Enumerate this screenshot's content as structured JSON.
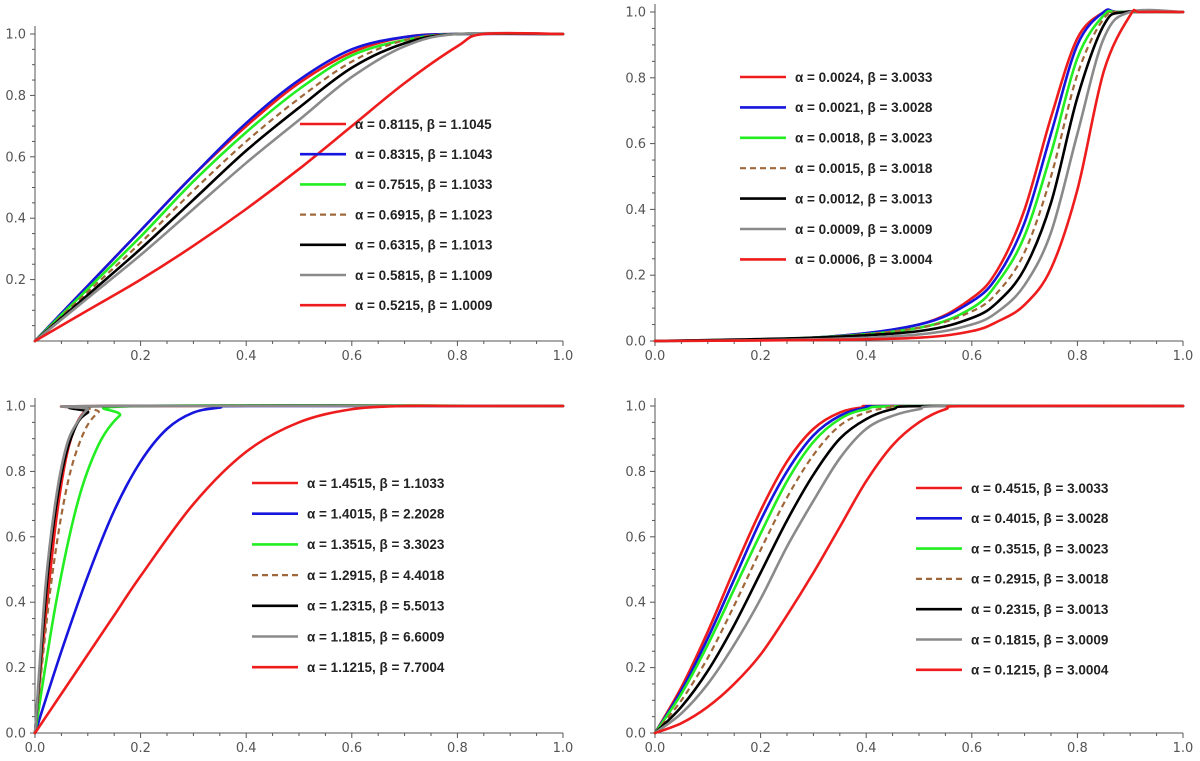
{
  "colors": {
    "red": "#ee1c1c",
    "blue": "#1515dd",
    "green": "#22ee22",
    "brown": "#a0683a",
    "black": "#000000",
    "gray": "#8a8a8a"
  },
  "chart_data": [
    {
      "type": "line",
      "title": "",
      "xlabel": "",
      "ylabel": "",
      "xlim": [
        0,
        1
      ],
      "ylim": [
        0,
        1
      ],
      "x_ticks": [
        "0.2",
        "0.4",
        "0.6",
        "0.8",
        "1.0"
      ],
      "y_ticks": [
        "0.2",
        "0.4",
        "0.6",
        "0.8",
        "1.0"
      ],
      "legend_position": "center-right",
      "series": [
        {
          "name": "α = 0.8115, β = 1.1045",
          "color": "red",
          "dashed": false,
          "x": [
            0,
            0.1,
            0.2,
            0.3,
            0.4,
            0.5,
            0.6,
            0.7,
            0.8,
            1.0
          ],
          "y": [
            0,
            0.18,
            0.36,
            0.54,
            0.7,
            0.84,
            0.94,
            0.99,
            1.0,
            1.0
          ]
        },
        {
          "name": "α = 0.8315, β = 1.1043",
          "color": "blue",
          "dashed": false,
          "x": [
            0,
            0.1,
            0.2,
            0.3,
            0.4,
            0.5,
            0.6,
            0.7,
            0.8,
            1.0
          ],
          "y": [
            0,
            0.18,
            0.36,
            0.54,
            0.71,
            0.85,
            0.95,
            0.99,
            1.0,
            1.0
          ]
        },
        {
          "name": "α = 0.7515, β = 1.1033",
          "color": "green",
          "dashed": false,
          "x": [
            0,
            0.1,
            0.2,
            0.3,
            0.4,
            0.5,
            0.6,
            0.7,
            0.8,
            1.0
          ],
          "y": [
            0,
            0.17,
            0.34,
            0.52,
            0.68,
            0.82,
            0.93,
            0.98,
            1.0,
            1.0
          ]
        },
        {
          "name": "α = 0.6915, β = 1.1023",
          "color": "brown",
          "dashed": true,
          "x": [
            0,
            0.1,
            0.2,
            0.3,
            0.4,
            0.5,
            0.6,
            0.7,
            0.8,
            1.0
          ],
          "y": [
            0,
            0.16,
            0.32,
            0.49,
            0.65,
            0.79,
            0.91,
            0.98,
            1.0,
            1.0
          ]
        },
        {
          "name": "α = 0.6315, β = 1.1013",
          "color": "black",
          "dashed": false,
          "x": [
            0,
            0.1,
            0.2,
            0.3,
            0.4,
            0.5,
            0.6,
            0.7,
            0.8,
            1.0
          ],
          "y": [
            0,
            0.15,
            0.3,
            0.46,
            0.62,
            0.76,
            0.89,
            0.97,
            1.0,
            1.0
          ]
        },
        {
          "name": "α = 0.5815, β = 1.1009",
          "color": "gray",
          "dashed": false,
          "x": [
            0,
            0.1,
            0.2,
            0.3,
            0.4,
            0.5,
            0.6,
            0.7,
            0.8,
            1.0
          ],
          "y": [
            0,
            0.14,
            0.28,
            0.43,
            0.58,
            0.72,
            0.86,
            0.96,
            1.0,
            1.0
          ]
        },
        {
          "name": "α = 0.5215, β = 1.0009",
          "color": "red",
          "dashed": false,
          "x": [
            0,
            0.1,
            0.2,
            0.3,
            0.4,
            0.5,
            0.6,
            0.7,
            0.8,
            0.85,
            1.0
          ],
          "y": [
            0,
            0.1,
            0.2,
            0.31,
            0.43,
            0.56,
            0.7,
            0.84,
            0.96,
            1.0,
            1.0
          ]
        }
      ]
    },
    {
      "type": "line",
      "title": "",
      "xlabel": "",
      "ylabel": "",
      "xlim": [
        0,
        1
      ],
      "ylim": [
        0,
        1
      ],
      "x_ticks": [
        "0.0",
        "0.2",
        "0.4",
        "0.6",
        "0.8",
        "1.0"
      ],
      "y_ticks": [
        "0.0",
        "0.2",
        "0.4",
        "0.6",
        "0.8",
        "1.0"
      ],
      "legend_position": "top-left",
      "series": [
        {
          "name": "α = 0.0024, β = 3.0033",
          "color": "red",
          "dashed": false,
          "x": [
            0,
            0.3,
            0.5,
            0.6,
            0.65,
            0.7,
            0.75,
            0.8,
            0.85,
            0.87,
            1.0
          ],
          "y": [
            0,
            0.01,
            0.05,
            0.13,
            0.22,
            0.4,
            0.68,
            0.92,
            1.0,
            1.0,
            1.0
          ]
        },
        {
          "name": "α = 0.0021, β = 3.0028",
          "color": "blue",
          "dashed": false,
          "x": [
            0,
            0.3,
            0.5,
            0.6,
            0.65,
            0.7,
            0.75,
            0.8,
            0.85,
            0.88,
            1.0
          ],
          "y": [
            0,
            0.01,
            0.05,
            0.12,
            0.2,
            0.36,
            0.63,
            0.9,
            1.0,
            1.0,
            1.0
          ]
        },
        {
          "name": "α = 0.0018, β = 3.0023",
          "color": "green",
          "dashed": false,
          "x": [
            0,
            0.3,
            0.5,
            0.6,
            0.65,
            0.7,
            0.75,
            0.8,
            0.85,
            0.88,
            1.0
          ],
          "y": [
            0,
            0.01,
            0.04,
            0.1,
            0.18,
            0.32,
            0.57,
            0.86,
            0.99,
            1.0,
            1.0
          ]
        },
        {
          "name": "α = 0.0015, β = 3.0018",
          "color": "brown",
          "dashed": true,
          "x": [
            0,
            0.3,
            0.5,
            0.6,
            0.65,
            0.7,
            0.75,
            0.8,
            0.85,
            0.89,
            1.0
          ],
          "y": [
            0,
            0.01,
            0.04,
            0.09,
            0.15,
            0.27,
            0.5,
            0.81,
            0.98,
            1.0,
            1.0
          ]
        },
        {
          "name": "α = 0.0012, β = 3.0013",
          "color": "black",
          "dashed": false,
          "x": [
            0,
            0.3,
            0.5,
            0.6,
            0.65,
            0.7,
            0.75,
            0.8,
            0.85,
            0.89,
            1.0
          ],
          "y": [
            0,
            0.01,
            0.03,
            0.07,
            0.12,
            0.22,
            0.42,
            0.74,
            0.96,
            1.0,
            1.0
          ]
        },
        {
          "name": "α = 0.0009, β = 3.0009",
          "color": "gray",
          "dashed": false,
          "x": [
            0,
            0.3,
            0.5,
            0.6,
            0.65,
            0.7,
            0.75,
            0.8,
            0.85,
            0.9,
            1.0
          ],
          "y": [
            0,
            0.005,
            0.02,
            0.05,
            0.09,
            0.17,
            0.33,
            0.63,
            0.92,
            1.0,
            1.0
          ]
        },
        {
          "name": "α = 0.0006, β = 3.0004",
          "color": "red",
          "dashed": false,
          "x": [
            0,
            0.3,
            0.5,
            0.6,
            0.65,
            0.7,
            0.75,
            0.8,
            0.85,
            0.9,
            0.92,
            1.0
          ],
          "y": [
            0,
            0.003,
            0.01,
            0.03,
            0.06,
            0.11,
            0.22,
            0.46,
            0.82,
            0.99,
            1.0,
            1.0
          ]
        }
      ]
    },
    {
      "type": "line",
      "title": "",
      "xlabel": "",
      "ylabel": "",
      "xlim": [
        0,
        1
      ],
      "ylim": [
        0,
        1
      ],
      "x_ticks": [
        "0.0",
        "0.2",
        "0.4",
        "0.6",
        "0.8",
        "1.0"
      ],
      "y_ticks": [
        "0.0",
        "0.2",
        "0.4",
        "0.6",
        "0.8",
        "1.0"
      ],
      "legend_position": "center-right",
      "series": [
        {
          "name": "α = 1.4515, β = 1.1033",
          "color": "red",
          "dashed": false,
          "x": [
            0,
            0.02,
            0.04,
            0.06,
            0.08,
            0.1,
            0.12,
            1.0
          ],
          "y": [
            0,
            0.35,
            0.65,
            0.85,
            0.95,
            0.99,
            1.0,
            1.0
          ]
        },
        {
          "name": "α = 1.4015, β = 2.2028",
          "color": "blue",
          "dashed": false,
          "x": [
            0,
            0.05,
            0.1,
            0.15,
            0.2,
            0.25,
            0.3,
            0.35,
            0.4,
            1.0
          ],
          "y": [
            0,
            0.25,
            0.48,
            0.68,
            0.83,
            0.93,
            0.98,
            0.995,
            1.0,
            1.0
          ]
        },
        {
          "name": "α = 1.3515, β = 3.3023",
          "color": "green",
          "dashed": false,
          "x": [
            0,
            0.04,
            0.08,
            0.12,
            0.16,
            0.2,
            1.0
          ],
          "y": [
            0,
            0.4,
            0.7,
            0.88,
            0.97,
            1.0,
            1.0
          ]
        },
        {
          "name": "α = 1.2915, β = 4.4018",
          "color": "brown",
          "dashed": true,
          "x": [
            0,
            0.03,
            0.06,
            0.09,
            0.12,
            0.16,
            1.0
          ],
          "y": [
            0,
            0.45,
            0.75,
            0.91,
            0.98,
            1.0,
            1.0
          ]
        },
        {
          "name": "α = 1.2315, β = 5.5013",
          "color": "black",
          "dashed": false,
          "x": [
            0,
            0.025,
            0.05,
            0.075,
            0.1,
            0.14,
            1.0
          ],
          "y": [
            0,
            0.5,
            0.79,
            0.93,
            0.98,
            1.0,
            1.0
          ]
        },
        {
          "name": "α = 1.1815, β = 6.6009",
          "color": "gray",
          "dashed": false,
          "x": [
            0,
            0.02,
            0.04,
            0.06,
            0.08,
            0.1,
            0.12,
            1.0
          ],
          "y": [
            0,
            0.45,
            0.72,
            0.88,
            0.95,
            0.99,
            1.0,
            1.0
          ]
        },
        {
          "name": "α = 1.1215, β = 7.7004",
          "color": "red",
          "dashed": false,
          "x": [
            0,
            0.05,
            0.1,
            0.15,
            0.2,
            0.3,
            0.4,
            0.5,
            0.6,
            0.7,
            0.8,
            1.0
          ],
          "y": [
            0,
            0.12,
            0.24,
            0.36,
            0.48,
            0.7,
            0.86,
            0.95,
            0.99,
            1.0,
            1.0,
            1.0
          ]
        }
      ]
    },
    {
      "type": "line",
      "title": "",
      "xlabel": "",
      "ylabel": "",
      "xlim": [
        0,
        1
      ],
      "ylim": [
        0,
        1
      ],
      "x_ticks": [
        "0.0",
        "0.2",
        "0.4",
        "0.6",
        "0.8",
        "1.0"
      ],
      "y_ticks": [
        "0.0",
        "0.2",
        "0.4",
        "0.6",
        "0.8",
        "1.0"
      ],
      "legend_position": "center-right",
      "series": [
        {
          "name": "α = 0.4515, β = 3.0033",
          "color": "red",
          "dashed": false,
          "x": [
            0,
            0.05,
            0.1,
            0.15,
            0.2,
            0.25,
            0.3,
            0.35,
            0.4,
            0.45,
            1.0
          ],
          "y": [
            0,
            0.14,
            0.31,
            0.5,
            0.68,
            0.83,
            0.93,
            0.98,
            0.997,
            1.0,
            1.0
          ]
        },
        {
          "name": "α = 0.4015, β = 3.0028",
          "color": "blue",
          "dashed": false,
          "x": [
            0,
            0.05,
            0.1,
            0.15,
            0.2,
            0.25,
            0.3,
            0.35,
            0.4,
            0.46,
            1.0
          ],
          "y": [
            0,
            0.13,
            0.29,
            0.47,
            0.65,
            0.8,
            0.91,
            0.97,
            0.995,
            1.0,
            1.0
          ]
        },
        {
          "name": "α = 0.3515, β = 3.0023",
          "color": "green",
          "dashed": false,
          "x": [
            0,
            0.05,
            0.1,
            0.15,
            0.2,
            0.25,
            0.3,
            0.35,
            0.4,
            0.48,
            1.0
          ],
          "y": [
            0,
            0.12,
            0.27,
            0.44,
            0.61,
            0.77,
            0.89,
            0.96,
            0.99,
            1.0,
            1.0
          ]
        },
        {
          "name": "α = 0.2915, β = 3.0018",
          "color": "brown",
          "dashed": true,
          "x": [
            0,
            0.05,
            0.1,
            0.15,
            0.2,
            0.25,
            0.3,
            0.35,
            0.4,
            0.45,
            0.5,
            1.0
          ],
          "y": [
            0,
            0.1,
            0.23,
            0.39,
            0.56,
            0.72,
            0.85,
            0.94,
            0.98,
            0.997,
            1.0,
            1.0
          ]
        },
        {
          "name": "α = 0.2315, β = 3.0013",
          "color": "black",
          "dashed": false,
          "x": [
            0,
            0.05,
            0.1,
            0.15,
            0.2,
            0.25,
            0.3,
            0.35,
            0.4,
            0.45,
            0.52,
            1.0
          ],
          "y": [
            0,
            0.08,
            0.19,
            0.33,
            0.49,
            0.65,
            0.79,
            0.9,
            0.96,
            0.99,
            1.0,
            1.0
          ]
        },
        {
          "name": "α = 0.1815, β = 3.0009",
          "color": "gray",
          "dashed": false,
          "x": [
            0,
            0.05,
            0.1,
            0.15,
            0.2,
            0.25,
            0.3,
            0.35,
            0.4,
            0.45,
            0.5,
            0.56,
            1.0
          ],
          "y": [
            0,
            0.06,
            0.15,
            0.27,
            0.41,
            0.57,
            0.71,
            0.84,
            0.93,
            0.97,
            0.99,
            1.0,
            1.0
          ]
        },
        {
          "name": "α = 0.1215, β = 3.0004",
          "color": "red",
          "dashed": false,
          "x": [
            0,
            0.05,
            0.1,
            0.15,
            0.2,
            0.25,
            0.3,
            0.35,
            0.4,
            0.45,
            0.5,
            0.55,
            0.6,
            1.0
          ],
          "y": [
            0,
            0.03,
            0.08,
            0.15,
            0.24,
            0.36,
            0.49,
            0.63,
            0.77,
            0.88,
            0.95,
            0.99,
            1.0,
            1.0
          ]
        }
      ]
    }
  ]
}
